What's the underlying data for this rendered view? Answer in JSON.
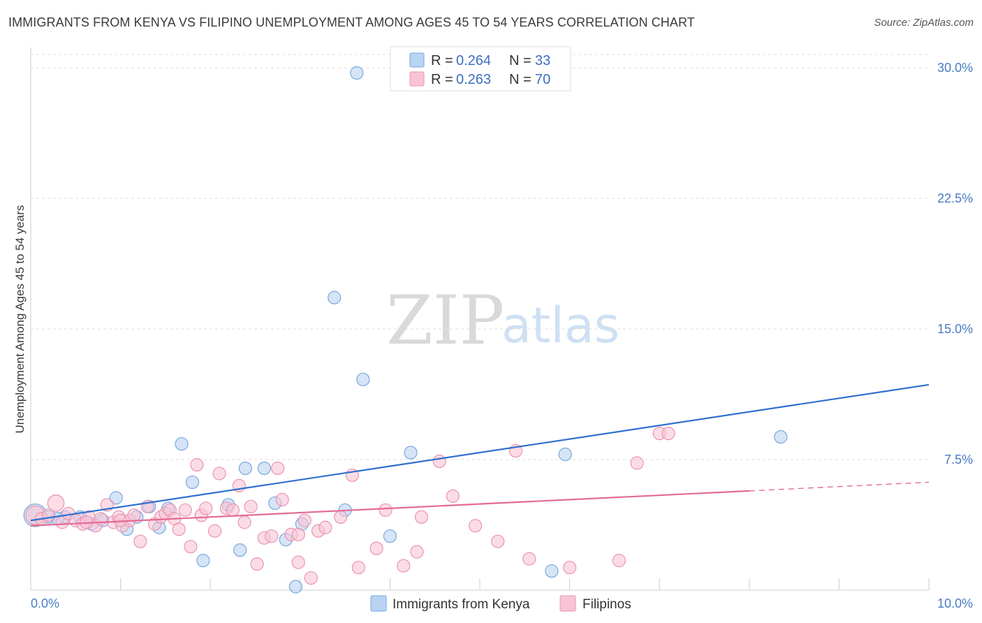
{
  "title": "IMMIGRANTS FROM KENYA VS FILIPINO UNEMPLOYMENT AMONG AGES 45 TO 54 YEARS CORRELATION CHART",
  "source": "Source: ZipAtlas.com",
  "watermark": {
    "zip": "ZIP",
    "atlas": "atlas"
  },
  "colors": {
    "kenya_fill": "#b9d3f2",
    "kenya_stroke": "#7aa6dc",
    "kenya_line": "#2f6fd0",
    "filipino_fill": "#f8c4d5",
    "filipino_stroke": "#ea94b0",
    "filipino_line": "#e46a93",
    "grid": "#dddddd",
    "tick_text": "#4a7cc4"
  },
  "legend": {
    "rows": [
      {
        "r_label": "R = ",
        "r_value": "0.264",
        "n_label": "N = ",
        "n_value": "33"
      },
      {
        "r_label": "R = ",
        "r_value": "0.263",
        "n_label": "N = ",
        "n_value": "70"
      }
    ]
  },
  "chart_data": {
    "type": "scatter",
    "title": "IMMIGRANTS FROM KENYA VS FILIPINO UNEMPLOYMENT AMONG AGES 45 TO 54 YEARS CORRELATION CHART",
    "xlabel": "",
    "ylabel": "Unemployment Among Ages 45 to 54 years",
    "xlim": [
      0,
      10
    ],
    "ylim": [
      0,
      30
    ],
    "x_tick_labels": [
      {
        "value": 0,
        "label": "0.0%"
      },
      {
        "value": 10,
        "label": "10.0%"
      }
    ],
    "y_tick_labels": [
      {
        "value": 7.5,
        "label": "7.5%"
      },
      {
        "value": 15,
        "label": "15.0%"
      },
      {
        "value": 22.5,
        "label": "22.5%"
      },
      {
        "value": 30,
        "label": "30.0%"
      }
    ],
    "x_minor_ticks": [
      1,
      2,
      3,
      4,
      5,
      6,
      7,
      8,
      9,
      10
    ],
    "grid": true,
    "legend_position": "top-center",
    "series": [
      {
        "name": "Immigrants from Kenya",
        "r": 0.264,
        "n": 33,
        "trend": {
          "x0": 0,
          "y0": 4.0,
          "x1": 10,
          "y1": 11.8,
          "dashed_from": null
        },
        "points": [
          [
            0.05,
            4.3,
            1.8
          ],
          [
            0.2,
            4.2,
            1
          ],
          [
            0.38,
            4.2,
            1
          ],
          [
            0.55,
            4.2,
            1
          ],
          [
            0.68,
            3.8,
            1
          ],
          [
            0.8,
            4.0,
            1
          ],
          [
            0.95,
            5.3,
            1
          ],
          [
            1.07,
            3.5,
            1
          ],
          [
            1.18,
            4.2,
            1
          ],
          [
            1.32,
            4.8,
            1
          ],
          [
            1.43,
            3.6,
            1
          ],
          [
            1.53,
            4.7,
            1
          ],
          [
            1.68,
            8.4,
            1
          ],
          [
            1.8,
            6.2,
            1
          ],
          [
            1.92,
            1.7,
            1
          ],
          [
            2.2,
            4.9,
            1
          ],
          [
            2.33,
            2.3,
            1
          ],
          [
            2.39,
            7.0,
            1
          ],
          [
            2.6,
            7.0,
            1
          ],
          [
            2.72,
            5.0,
            1
          ],
          [
            2.84,
            2.9,
            1
          ],
          [
            2.95,
            0.2,
            1
          ],
          [
            3.02,
            3.8,
            1
          ],
          [
            3.38,
            16.8,
            1
          ],
          [
            3.5,
            4.6,
            1
          ],
          [
            3.63,
            29.7,
            1
          ],
          [
            3.7,
            12.1,
            1
          ],
          [
            4.0,
            3.1,
            1
          ],
          [
            4.23,
            7.9,
            1
          ],
          [
            5.95,
            7.8,
            1
          ],
          [
            5.8,
            1.1,
            1
          ],
          [
            8.35,
            8.8,
            1
          ],
          [
            0.3,
            4.1,
            1
          ]
        ]
      },
      {
        "name": "Filipinos",
        "r": 0.263,
        "n": 70,
        "trend": {
          "x0": 0,
          "y0": 3.7,
          "x1": 10,
          "y1": 6.2,
          "dashed_from": 8.0
        },
        "points": [
          [
            0.05,
            4.3,
            1.5
          ],
          [
            0.12,
            4.1,
            1
          ],
          [
            0.2,
            4.3,
            1
          ],
          [
            0.28,
            5.0,
            1.3
          ],
          [
            0.35,
            3.9,
            1
          ],
          [
            0.42,
            4.4,
            1
          ],
          [
            0.5,
            4.0,
            1
          ],
          [
            0.58,
            3.8,
            1
          ],
          [
            0.65,
            4.2,
            1
          ],
          [
            0.72,
            3.7,
            1
          ],
          [
            0.78,
            4.1,
            1
          ],
          [
            0.85,
            4.9,
            1
          ],
          [
            0.92,
            3.9,
            1
          ],
          [
            0.98,
            4.2,
            1
          ],
          [
            1.02,
            3.7,
            1
          ],
          [
            1.1,
            4.0,
            1
          ],
          [
            1.15,
            4.3,
            1
          ],
          [
            1.22,
            2.8,
            1
          ],
          [
            1.3,
            4.8,
            1
          ],
          [
            1.38,
            3.8,
            1
          ],
          [
            1.45,
            4.2,
            1
          ],
          [
            1.5,
            4.4,
            1
          ],
          [
            1.55,
            4.6,
            1
          ],
          [
            1.6,
            4.1,
            1
          ],
          [
            1.65,
            3.5,
            1
          ],
          [
            1.72,
            4.6,
            1
          ],
          [
            1.78,
            2.5,
            1
          ],
          [
            1.85,
            7.2,
            1
          ],
          [
            1.9,
            4.3,
            1
          ],
          [
            1.95,
            4.7,
            1
          ],
          [
            2.05,
            3.4,
            1
          ],
          [
            2.1,
            6.7,
            1
          ],
          [
            2.18,
            4.7,
            1
          ],
          [
            2.25,
            4.6,
            1
          ],
          [
            2.32,
            6.0,
            1
          ],
          [
            2.38,
            3.9,
            1
          ],
          [
            2.45,
            4.8,
            1
          ],
          [
            2.52,
            1.5,
            1
          ],
          [
            2.6,
            3.0,
            1
          ],
          [
            2.68,
            3.1,
            1
          ],
          [
            2.75,
            7.0,
            1
          ],
          [
            2.8,
            5.2,
            1
          ],
          [
            2.9,
            3.2,
            1
          ],
          [
            2.98,
            1.6,
            1
          ],
          [
            3.05,
            4.0,
            1
          ],
          [
            3.12,
            0.7,
            1
          ],
          [
            3.2,
            3.4,
            1
          ],
          [
            3.28,
            3.6,
            1
          ],
          [
            3.45,
            4.2,
            1
          ],
          [
            3.58,
            6.6,
            1
          ],
          [
            3.65,
            1.3,
            1
          ],
          [
            3.85,
            2.4,
            1
          ],
          [
            3.95,
            4.6,
            1
          ],
          [
            4.15,
            1.4,
            1
          ],
          [
            4.3,
            2.2,
            1
          ],
          [
            4.35,
            4.2,
            1
          ],
          [
            4.55,
            7.4,
            1
          ],
          [
            4.7,
            5.4,
            1
          ],
          [
            4.95,
            3.7,
            1
          ],
          [
            5.2,
            2.8,
            1
          ],
          [
            5.4,
            8.0,
            1
          ],
          [
            5.55,
            1.8,
            1
          ],
          [
            6.0,
            1.3,
            1
          ],
          [
            6.55,
            1.7,
            1
          ],
          [
            6.75,
            7.3,
            1
          ],
          [
            7.0,
            9.0,
            1
          ],
          [
            7.1,
            9.0,
            1
          ],
          [
            1.0,
            4.0,
            1
          ],
          [
            0.62,
            3.9,
            1
          ],
          [
            2.98,
            3.2,
            1
          ]
        ]
      }
    ]
  },
  "bottom_legend": [
    {
      "label": "Immigrants from Kenya"
    },
    {
      "label": "Filipinos"
    }
  ]
}
